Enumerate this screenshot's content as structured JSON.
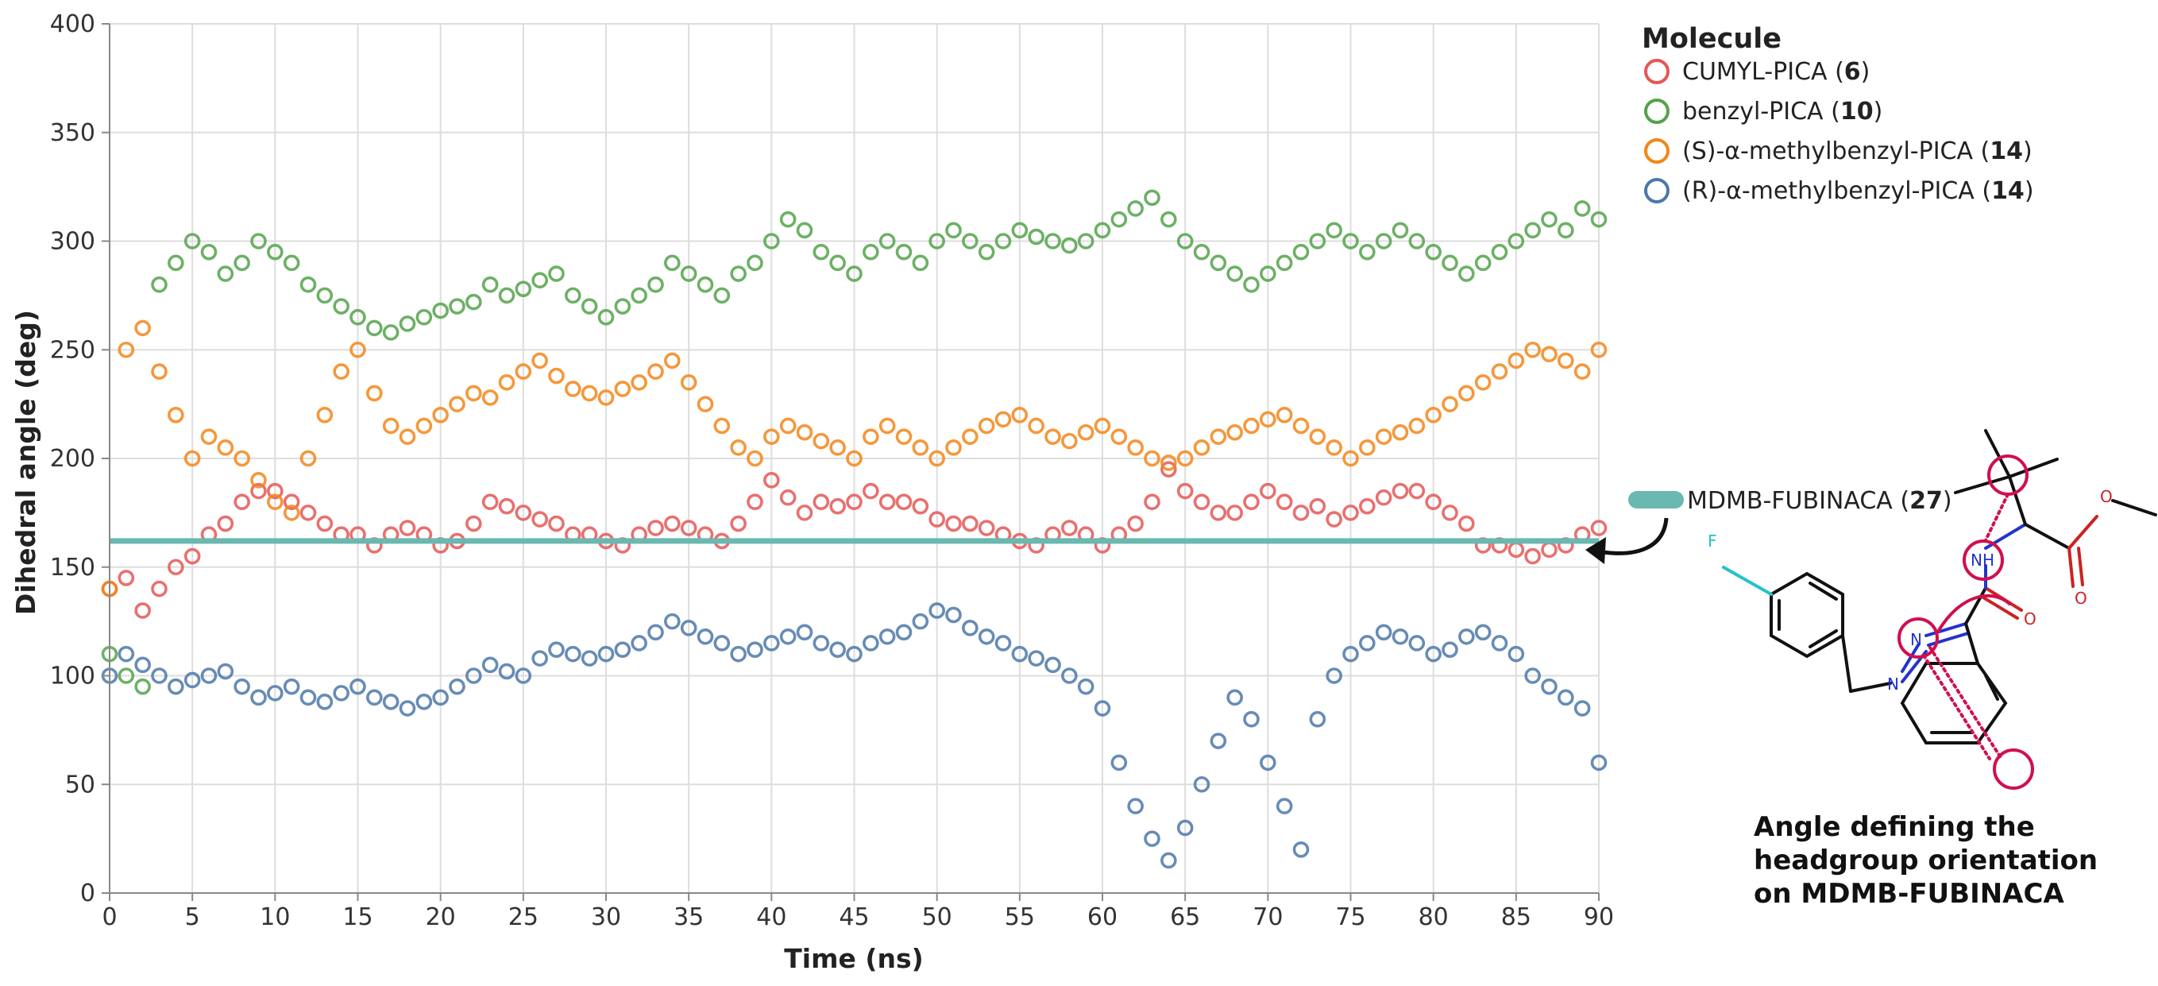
{
  "chart_data": {
    "type": "scatter",
    "xlabel": "Time (ns)",
    "ylabel": "Dihedral angle (deg)",
    "xlim": [
      0,
      90
    ],
    "ylim": [
      0,
      400
    ],
    "xticks": [
      0,
      5,
      10,
      15,
      20,
      25,
      30,
      35,
      40,
      45,
      50,
      55,
      60,
      65,
      70,
      75,
      80,
      85,
      90
    ],
    "yticks": [
      0,
      50,
      100,
      150,
      200,
      250,
      300,
      350,
      400
    ],
    "grid": true,
    "legend_title": "Molecule",
    "legend_position": "top-right",
    "series": [
      {
        "name": "CUMYL-PICA",
        "compound": "6",
        "color": "#e45756",
        "x": [
          0,
          1,
          2,
          3,
          4,
          5,
          6,
          7,
          8,
          9,
          10,
          11,
          12,
          13,
          14,
          15,
          16,
          17,
          18,
          19,
          20,
          21,
          22,
          23,
          24,
          25,
          26,
          27,
          28,
          29,
          30,
          31,
          32,
          33,
          34,
          35,
          36,
          37,
          38,
          39,
          40,
          41,
          42,
          43,
          44,
          45,
          46,
          47,
          48,
          49,
          50,
          51,
          52,
          53,
          54,
          55,
          56,
          57,
          58,
          59,
          60,
          61,
          62,
          63,
          64,
          65,
          66,
          67,
          68,
          69,
          70,
          71,
          72,
          73,
          74,
          75,
          76,
          77,
          78,
          79,
          80,
          81,
          82,
          83,
          84,
          85,
          86,
          87,
          88,
          89,
          90
        ],
        "y": [
          140,
          145,
          130,
          140,
          150,
          155,
          165,
          170,
          180,
          185,
          185,
          180,
          175,
          170,
          165,
          165,
          160,
          165,
          168,
          165,
          160,
          162,
          170,
          180,
          178,
          175,
          172,
          170,
          165,
          165,
          162,
          160,
          165,
          168,
          170,
          168,
          165,
          162,
          170,
          180,
          190,
          182,
          175,
          180,
          178,
          180,
          185,
          180,
          180,
          178,
          172,
          170,
          170,
          168,
          165,
          162,
          160,
          165,
          168,
          165,
          160,
          165,
          170,
          180,
          195,
          185,
          180,
          175,
          175,
          180,
          185,
          180,
          175,
          178,
          172,
          175,
          178,
          182,
          185,
          185,
          180,
          175,
          170,
          160,
          160,
          158,
          155,
          158,
          160,
          165,
          168
        ]
      },
      {
        "name": "benzyl-PICA",
        "compound": "10",
        "color": "#54a24b",
        "x": [
          0,
          1,
          2,
          3,
          4,
          5,
          6,
          7,
          8,
          9,
          10,
          11,
          12,
          13,
          14,
          15,
          16,
          17,
          18,
          19,
          20,
          21,
          22,
          23,
          24,
          25,
          26,
          27,
          28,
          29,
          30,
          31,
          32,
          33,
          34,
          35,
          36,
          37,
          38,
          39,
          40,
          41,
          42,
          43,
          44,
          45,
          46,
          47,
          48,
          49,
          50,
          51,
          52,
          53,
          54,
          55,
          56,
          57,
          58,
          59,
          60,
          61,
          62,
          63,
          64,
          65,
          66,
          67,
          68,
          69,
          70,
          71,
          72,
          73,
          74,
          75,
          76,
          77,
          78,
          79,
          80,
          81,
          82,
          83,
          84,
          85,
          86,
          87,
          88,
          89,
          90
        ],
        "y": [
          110,
          100,
          95,
          280,
          290,
          300,
          295,
          285,
          290,
          300,
          295,
          290,
          280,
          275,
          270,
          265,
          260,
          258,
          262,
          265,
          268,
          270,
          272,
          280,
          275,
          278,
          282,
          285,
          275,
          270,
          265,
          270,
          275,
          280,
          290,
          285,
          280,
          275,
          285,
          290,
          300,
          310,
          305,
          295,
          290,
          285,
          295,
          300,
          295,
          290,
          300,
          305,
          300,
          295,
          300,
          305,
          302,
          300,
          298,
          300,
          305,
          310,
          315,
          320,
          310,
          300,
          295,
          290,
          285,
          280,
          285,
          290,
          295,
          300,
          305,
          300,
          295,
          300,
          305,
          300,
          295,
          290,
          285,
          290,
          295,
          300,
          305,
          310,
          305,
          315,
          310
        ]
      },
      {
        "name": "(S)-α-methylbenzyl-PICA",
        "compound": "14",
        "color": "#f58518",
        "x": [
          0,
          1,
          2,
          3,
          4,
          5,
          6,
          7,
          8,
          9,
          10,
          11,
          12,
          13,
          14,
          15,
          16,
          17,
          18,
          19,
          20,
          21,
          22,
          23,
          24,
          25,
          26,
          27,
          28,
          29,
          30,
          31,
          32,
          33,
          34,
          35,
          36,
          37,
          38,
          39,
          40,
          41,
          42,
          43,
          44,
          45,
          46,
          47,
          48,
          49,
          50,
          51,
          52,
          53,
          54,
          55,
          56,
          57,
          58,
          59,
          60,
          61,
          62,
          63,
          64,
          65,
          66,
          67,
          68,
          69,
          70,
          71,
          72,
          73,
          74,
          75,
          76,
          77,
          78,
          79,
          80,
          81,
          82,
          83,
          84,
          85,
          86,
          87,
          88,
          89,
          90
        ],
        "y": [
          140,
          250,
          260,
          240,
          220,
          200,
          210,
          205,
          200,
          190,
          180,
          175,
          200,
          220,
          240,
          250,
          230,
          215,
          210,
          215,
          220,
          225,
          230,
          228,
          235,
          240,
          245,
          238,
          232,
          230,
          228,
          232,
          235,
          240,
          245,
          235,
          225,
          215,
          205,
          200,
          210,
          215,
          212,
          208,
          205,
          200,
          210,
          215,
          210,
          205,
          200,
          205,
          210,
          215,
          218,
          220,
          215,
          210,
          208,
          212,
          215,
          210,
          205,
          200,
          198,
          200,
          205,
          210,
          212,
          215,
          218,
          220,
          215,
          210,
          205,
          200,
          205,
          210,
          212,
          215,
          220,
          225,
          230,
          235,
          240,
          245,
          250,
          248,
          245,
          240,
          250
        ]
      },
      {
        "name": "(R)-α-methylbenzyl-PICA",
        "compound": "14",
        "color": "#4c78a8",
        "x": [
          0,
          1,
          2,
          3,
          4,
          5,
          6,
          7,
          8,
          9,
          10,
          11,
          12,
          13,
          14,
          15,
          16,
          17,
          18,
          19,
          20,
          21,
          22,
          23,
          24,
          25,
          26,
          27,
          28,
          29,
          30,
          31,
          32,
          33,
          34,
          35,
          36,
          37,
          38,
          39,
          40,
          41,
          42,
          43,
          44,
          45,
          46,
          47,
          48,
          49,
          50,
          51,
          52,
          53,
          54,
          55,
          56,
          57,
          58,
          59,
          60,
          61,
          62,
          63,
          64,
          65,
          66,
          67,
          68,
          69,
          70,
          71,
          72,
          73,
          74,
          75,
          76,
          77,
          78,
          79,
          80,
          81,
          82,
          83,
          84,
          85,
          86,
          87,
          88,
          89,
          90
        ],
        "y": [
          100,
          110,
          105,
          100,
          95,
          98,
          100,
          102,
          95,
          90,
          92,
          95,
          90,
          88,
          92,
          95,
          90,
          88,
          85,
          88,
          90,
          95,
          100,
          105,
          102,
          100,
          108,
          112,
          110,
          108,
          110,
          112,
          115,
          120,
          125,
          122,
          118,
          115,
          110,
          112,
          115,
          118,
          120,
          115,
          112,
          110,
          115,
          118,
          120,
          125,
          130,
          128,
          122,
          118,
          115,
          110,
          108,
          105,
          100,
          95,
          85,
          60,
          40,
          25,
          15,
          30,
          50,
          70,
          90,
          80,
          60,
          40,
          20,
          80,
          100,
          110,
          115,
          120,
          118,
          115,
          110,
          112,
          118,
          120,
          115,
          110,
          100,
          95,
          90,
          85,
          60
        ]
      }
    ],
    "reference_line": {
      "label": "MDMB-FUBINACA",
      "compound": "27",
      "y": 162,
      "color": "#6ab8b0"
    }
  },
  "caption": {
    "line1": "Angle defining the",
    "line2": "headgroup orientation",
    "line3": "on MDMB-FUBINACA"
  },
  "structure_labels": {
    "fluorine": "F",
    "nh": "NH",
    "n1": "N",
    "n2": "N",
    "o_carbonyl": "O",
    "o_ester1": "O",
    "o_ester2": "O"
  }
}
